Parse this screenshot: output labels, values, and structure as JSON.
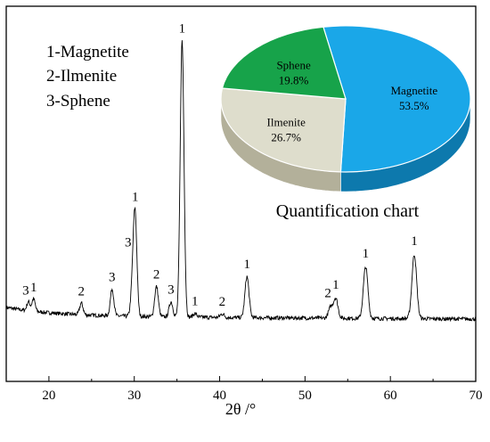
{
  "chart_data": [
    {
      "type": "line",
      "xlabel": "2θ /°",
      "ylabel": "",
      "xlim": [
        15,
        70
      ],
      "x_ticks": [
        "20",
        "30",
        "40",
        "50",
        "60",
        "70"
      ],
      "y_ticks_shown": false,
      "grid": false,
      "baseline": 22,
      "noise": 2,
      "peaks": [
        {
          "x": 17.6,
          "height": 10,
          "label": "3"
        },
        {
          "x": 18.2,
          "height": 14,
          "label": "1"
        },
        {
          "x": 23.8,
          "height": 13,
          "label": "2"
        },
        {
          "x": 27.4,
          "height": 30,
          "label": "3"
        },
        {
          "x": 29.8,
          "height": 30,
          "label": "3"
        },
        {
          "x": 30.1,
          "height": 110,
          "label": "1"
        },
        {
          "x": 32.6,
          "height": 34,
          "label": "2"
        },
        {
          "x": 34.3,
          "height": 17,
          "label": "3"
        },
        {
          "x": 35.6,
          "height": 310,
          "label": "1"
        },
        {
          "x": 37.1,
          "height": 4,
          "label": "1"
        },
        {
          "x": 40.3,
          "height": 4,
          "label": "2"
        },
        {
          "x": 43.2,
          "height": 46,
          "label": "1"
        },
        {
          "x": 53.0,
          "height": 12,
          "label": "2"
        },
        {
          "x": 53.6,
          "height": 22,
          "label": "1"
        },
        {
          "x": 57.1,
          "height": 58,
          "label": "1"
        },
        {
          "x": 62.8,
          "height": 72,
          "label": "1"
        }
      ],
      "legend": [
        "1-Magnetite",
        "2-Ilmenite",
        "3-Sphene"
      ],
      "legend_position": "top-left"
    },
    {
      "type": "pie",
      "title": "Quantification chart",
      "slices": [
        {
          "name": "Magnetite",
          "value": 53.5,
          "label": "53.5%",
          "color": "#1aa7e8",
          "side_color": "#0d79ad"
        },
        {
          "name": "Ilmenite",
          "value": 26.7,
          "label": "26.7%",
          "color": "#deddcc",
          "side_color": "#b3b09a"
        },
        {
          "name": "Sphene",
          "value": 19.8,
          "label": "19.8%",
          "color": "#17a34a",
          "side_color": "#0f7a36"
        }
      ],
      "style": "3d",
      "position": "top-right"
    }
  ]
}
